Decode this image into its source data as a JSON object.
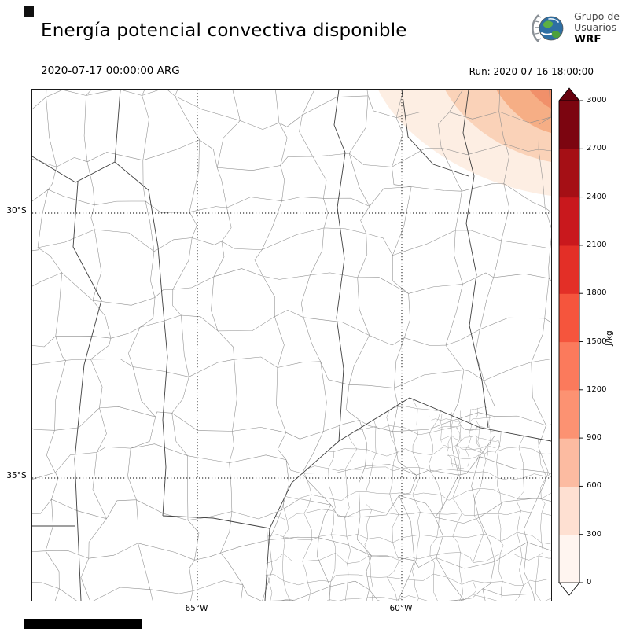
{
  "header": {
    "title": "Energía potencial convectiva disponible",
    "valid_time": "2020-07-17 00:00:00 ARG",
    "run_time": "Run: 2020-07-16 18:00:00",
    "logo": {
      "line1": "Grupo de",
      "line2": "Usuarios",
      "line3": "WRF"
    }
  },
  "map": {
    "lat_ticks": [
      "30°S",
      "35°S"
    ],
    "lon_ticks": [
      "65°W",
      "60°W"
    ],
    "boundary_color": "#8c8c8c",
    "province_boundary_color": "#3f3f3f"
  },
  "colorbar": {
    "unit": "J/kg",
    "tick_labels_top_to_bottom": [
      "3000",
      "2700",
      "2400",
      "2100",
      "1800",
      "1500",
      "1200",
      "900",
      "600",
      "300",
      "0"
    ],
    "segment_colors_bottom_to_top": [
      "#fff5f0",
      "#fee0d2",
      "#fcbba1",
      "#fc9272",
      "#fb7a5c",
      "#f5553d",
      "#e32f27",
      "#c9181d",
      "#a50f15",
      "#7c0510"
    ],
    "over_arrow_color": "#67000d",
    "under_arrow_color": "#ffffff"
  },
  "cape_field": {
    "shaded_region": "northeast corner of map",
    "approx_max_value": 900,
    "contour_fill_colors_light_to_dark": [
      "#fdeee3",
      "#fad2b8",
      "#f6ae85",
      "#f1906a"
    ]
  }
}
